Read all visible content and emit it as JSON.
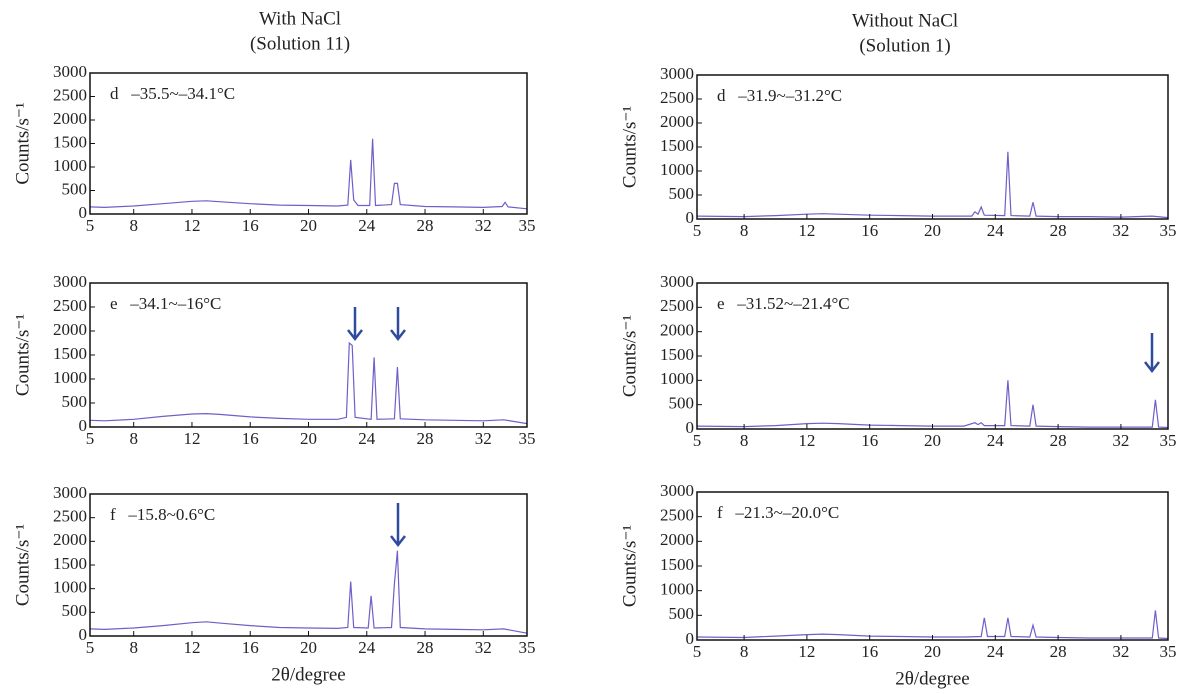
{
  "chart_data": [
    {
      "type": "line",
      "title": "With NaCl",
      "subtitle": "(Solution 11)",
      "annotation": "d   –35.5~–34.1°C",
      "ylabel": "Counts/s⁻¹",
      "x": [
        5,
        6,
        8,
        10,
        12,
        13,
        14,
        16,
        18,
        20,
        22,
        22.7,
        22.9,
        23.1,
        23.4,
        24.2,
        24.4,
        24.6,
        25.7,
        25.9,
        26.1,
        26.3,
        28,
        30,
        32,
        33.3,
        33.5,
        33.7,
        35
      ],
      "series": [
        {
          "color": "#6f5fc8",
          "values": [
            150,
            140,
            170,
            220,
            270,
            280,
            260,
            220,
            190,
            180,
            170,
            190,
            1150,
            300,
            180,
            180,
            1600,
            180,
            200,
            650,
            650,
            200,
            160,
            150,
            140,
            160,
            250,
            150,
            110
          ]
        }
      ],
      "xlim": [
        5,
        35
      ],
      "xticks": [
        5,
        8,
        12,
        16,
        20,
        24,
        28,
        32,
        35
      ],
      "ylim": [
        0,
        3000
      ],
      "yticks": [
        0,
        500,
        1000,
        1500,
        2000,
        2500,
        3000
      ]
    },
    {
      "type": "line",
      "annotation": "e   –34.1~–16°C",
      "ylabel": "Counts/s⁻¹",
      "x": [
        5,
        6,
        8,
        10,
        12,
        13,
        14,
        16,
        18,
        20,
        22,
        22.6,
        22.8,
        23,
        23.2,
        24.3,
        24.5,
        24.7,
        25.9,
        26.1,
        26.3,
        28,
        30,
        32,
        33.4,
        35
      ],
      "series": [
        {
          "color": "#6f5fc8",
          "values": [
            140,
            130,
            160,
            220,
            270,
            280,
            260,
            210,
            180,
            160,
            160,
            200,
            1750,
            1700,
            200,
            160,
            1450,
            160,
            170,
            1250,
            170,
            150,
            140,
            130,
            150,
            70
          ]
        }
      ],
      "xlim": [
        5,
        35
      ],
      "xticks": [
        5,
        8,
        12,
        16,
        20,
        24,
        28,
        32,
        35
      ],
      "ylim": [
        0,
        3000
      ],
      "yticks": [
        0,
        500,
        1000,
        1500,
        2000,
        2500,
        3000
      ]
    },
    {
      "type": "line",
      "annotation": "f   –15.8~0.6°C",
      "ylabel": "Counts/s⁻¹",
      "xlabel": "2θ/degree",
      "x": [
        5,
        6,
        8,
        10,
        12,
        13,
        14,
        16,
        18,
        20,
        22,
        22.7,
        22.9,
        23.1,
        24.1,
        24.3,
        24.5,
        25.7,
        25.9,
        26.1,
        26.3,
        28,
        30,
        32,
        33.4,
        35
      ],
      "series": [
        {
          "color": "#6f5fc8",
          "values": [
            150,
            140,
            170,
            220,
            280,
            300,
            270,
            220,
            180,
            170,
            160,
            180,
            1150,
            180,
            170,
            850,
            170,
            180,
            1100,
            1800,
            180,
            150,
            140,
            130,
            150,
            60
          ]
        }
      ],
      "xlim": [
        5,
        35
      ],
      "xticks": [
        5,
        8,
        12,
        16,
        20,
        24,
        28,
        32,
        35
      ],
      "ylim": [
        0,
        3000
      ],
      "yticks": [
        0,
        500,
        1000,
        1500,
        2000,
        2500,
        3000
      ]
    },
    {
      "type": "line",
      "title": "Without NaCl",
      "subtitle": "(Solution 1)",
      "annotation": "d   –31.9~–31.2°C",
      "ylabel": "Counts/s⁻¹",
      "x": [
        5,
        8,
        10,
        12,
        13,
        14,
        16,
        18,
        20,
        22,
        22.5,
        22.7,
        22.9,
        23.1,
        23.3,
        24.6,
        24.8,
        25,
        26.2,
        26.4,
        26.6,
        28,
        30,
        32,
        34,
        35
      ],
      "series": [
        {
          "color": "#6f5fc8",
          "values": [
            60,
            50,
            70,
            100,
            110,
            100,
            80,
            70,
            60,
            60,
            60,
            150,
            100,
            250,
            80,
            70,
            1400,
            70,
            60,
            350,
            60,
            50,
            50,
            40,
            60,
            30
          ]
        }
      ],
      "xlim": [
        5,
        35
      ],
      "xticks": [
        5,
        8,
        12,
        16,
        20,
        24,
        28,
        32,
        35
      ],
      "ylim": [
        0,
        3000
      ],
      "yticks": [
        0,
        500,
        1000,
        1500,
        2000,
        2500,
        3000
      ]
    },
    {
      "type": "line",
      "annotation": "e   –31.52~–21.4°C",
      "ylabel": "Counts/s⁻¹",
      "x": [
        5,
        8,
        10,
        12,
        13,
        14,
        16,
        18,
        20,
        22,
        22.7,
        22.9,
        23.1,
        23.3,
        24.6,
        24.8,
        25,
        26.2,
        26.4,
        26.6,
        28,
        30,
        32,
        34,
        34.2,
        34.4,
        35
      ],
      "series": [
        {
          "color": "#6f5fc8",
          "values": [
            60,
            50,
            70,
            110,
            120,
            110,
            80,
            70,
            60,
            60,
            130,
            90,
            130,
            70,
            70,
            1000,
            70,
            60,
            500,
            60,
            50,
            40,
            40,
            40,
            600,
            40,
            30
          ]
        }
      ],
      "xlim": [
        5,
        35
      ],
      "xticks": [
        5,
        8,
        12,
        16,
        20,
        24,
        28,
        32,
        35
      ],
      "ylim": [
        0,
        3000
      ],
      "yticks": [
        0,
        500,
        1000,
        1500,
        2000,
        2500,
        3000
      ]
    },
    {
      "type": "line",
      "annotation": "f   –21.3~–20.0°C",
      "ylabel": "Counts/s⁻¹",
      "xlabel": "2θ/degree",
      "x": [
        5,
        8,
        10,
        12,
        13,
        14,
        16,
        18,
        20,
        22,
        23.1,
        23.3,
        23.5,
        24.6,
        24.8,
        25,
        26.2,
        26.4,
        26.6,
        28,
        30,
        32,
        34,
        34.2,
        34.4,
        35
      ],
      "series": [
        {
          "color": "#6f5fc8",
          "values": [
            60,
            50,
            80,
            110,
            120,
            110,
            80,
            70,
            60,
            60,
            70,
            450,
            70,
            70,
            450,
            70,
            60,
            300,
            60,
            50,
            40,
            40,
            40,
            600,
            40,
            30
          ]
        }
      ],
      "xlim": [
        5,
        35
      ],
      "xticks": [
        5,
        8,
        12,
        16,
        20,
        24,
        28,
        32,
        35
      ],
      "ylim": [
        0,
        3000
      ],
      "yticks": [
        0,
        500,
        1000,
        1500,
        2000,
        2500,
        3000
      ]
    }
  ]
}
